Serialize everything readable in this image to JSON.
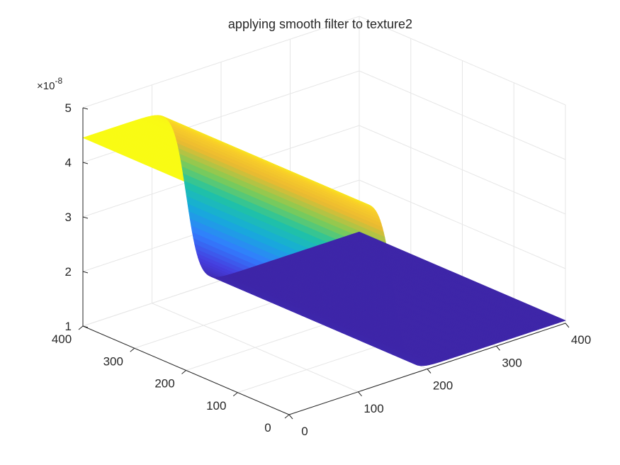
{
  "chart_data": {
    "type": "surface",
    "title": "applying smooth filter to texture2",
    "z_exponent_label": "×10",
    "z_exponent_power": "-8",
    "x_ticks": [
      "0",
      "100",
      "200",
      "300",
      "400"
    ],
    "y_ticks": [
      "0",
      "100",
      "200",
      "300",
      "400"
    ],
    "z_ticks": [
      "1",
      "2",
      "3",
      "4",
      "5"
    ],
    "xlim": [
      0,
      400
    ],
    "ylim": [
      0,
      400
    ],
    "zlim": [
      1e-08,
      5e-08
    ],
    "grid": true,
    "colormap": "parula",
    "surface": {
      "description_axis": "x",
      "z_low": 1.05e-08,
      "z_high": 4.45e-08,
      "transition_center_x": 150,
      "transition_width": 22,
      "z_at_x0": 4.3e-08,
      "z_at_x400": 1.05e-08
    }
  }
}
